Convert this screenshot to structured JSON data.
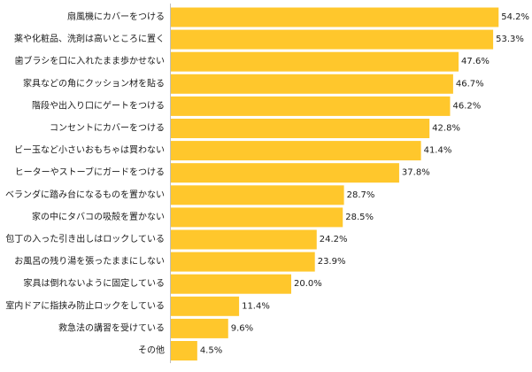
{
  "chart_data": {
    "type": "bar",
    "orientation": "horizontal",
    "title": "",
    "xlabel": "",
    "ylabel": "",
    "xlim": [
      0,
      60
    ],
    "grid": false,
    "bar_color": "#FFC72C",
    "axis_color": "#bfbfbf",
    "categories": [
      "扇風機にカバーをつける",
      "薬や化粧品、洗剤は高いところに置く",
      "歯ブラシを口に入れたまま歩かせない",
      "家具などの角にクッション材を貼る",
      "階段や出入り口にゲートをつける",
      "コンセントにカバーをつける",
      "ビー玉など小さいおもちゃは買わない",
      "ヒーターやストーブにガードをつける",
      "ベランダに踏み台になるものを置かない",
      "家の中にタバコの吸殻を置かない",
      "包丁の入った引き出しはロックしている",
      "お風呂の残り湯を張ったままにしない",
      "家具は倒れないように固定している",
      "室内ドアに指挟み防止ロックをしている",
      "救急法の講習を受けている",
      "その他"
    ],
    "values": [
      54.2,
      53.3,
      47.6,
      46.7,
      46.2,
      42.8,
      41.4,
      37.8,
      28.7,
      28.5,
      24.2,
      23.9,
      20.0,
      11.4,
      9.6,
      4.5
    ],
    "value_labels": [
      "54.2%",
      "53.3%",
      "47.6%",
      "46.7%",
      "46.2%",
      "42.8%",
      "41.4%",
      "37.8%",
      "28.7%",
      "28.5%",
      "24.2%",
      "23.9%",
      "20.0%",
      "11.4%",
      "9.6%",
      "4.5%"
    ]
  }
}
